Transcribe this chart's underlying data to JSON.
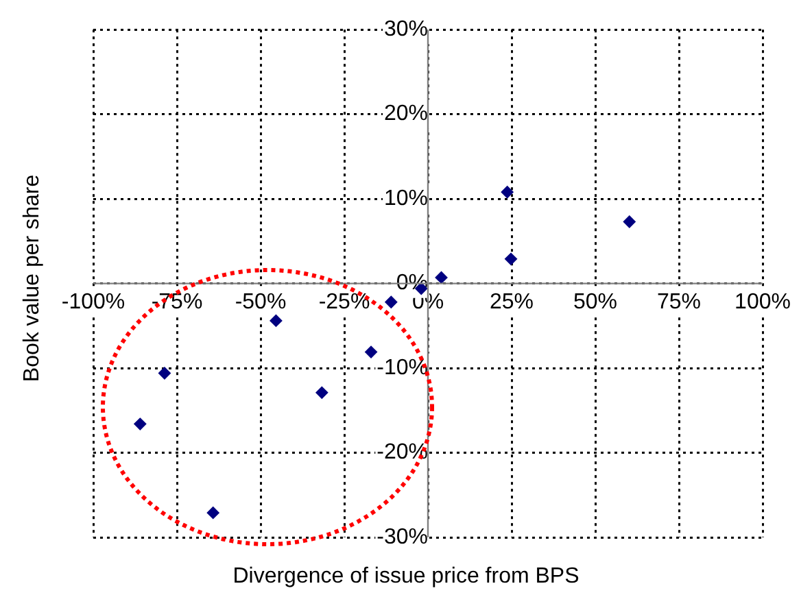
{
  "chart_data": {
    "type": "scatter",
    "xlabel": "Divergence of issue price from BPS",
    "ylabel": "Book value per share",
    "x": [
      -86,
      -78.7,
      -64.2,
      -45.4,
      -31.7,
      -17,
      -11,
      -2,
      4,
      23.7,
      24.8,
      60.2
    ],
    "values": [
      -16.6,
      -10.6,
      -27.1,
      -4.4,
      -12.9,
      -8.1,
      -2.2,
      -0.6,
      0.7,
      10.8,
      2.9,
      7.3
    ],
    "color": "#000080",
    "marker": "diamond",
    "grid": true,
    "legend": false,
    "xlim": [
      -100,
      100
    ],
    "xticks": [
      {
        "value": -100,
        "label": "-100%"
      },
      {
        "value": -75,
        "label": "-75%"
      },
      {
        "value": -50,
        "label": "-50%"
      },
      {
        "value": -25,
        "label": "-25%"
      },
      {
        "value": 0,
        "label": "0%"
      },
      {
        "value": 25,
        "label": "25%"
      },
      {
        "value": 50,
        "label": "50%"
      },
      {
        "value": 75,
        "label": "75%"
      },
      {
        "value": 100,
        "label": "100%"
      }
    ],
    "ylim": [
      -30,
      30
    ],
    "yticks": [
      {
        "value": -30,
        "label": "-30%"
      },
      {
        "value": -20,
        "label": "-20%"
      },
      {
        "value": -10,
        "label": "-10%"
      },
      {
        "value": 0,
        "label": "0%"
      },
      {
        "value": 10,
        "label": "10%"
      },
      {
        "value": 20,
        "label": "20%"
      },
      {
        "value": 30,
        "label": "30%"
      }
    ]
  }
}
